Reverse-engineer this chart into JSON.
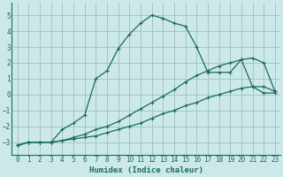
{
  "xlabel": "Humidex (Indice chaleur)",
  "background_color": "#cce8e8",
  "grid_color": "#a0c8c8",
  "line_color": "#1a6b5e",
  "xlim": [
    -0.5,
    23.5
  ],
  "ylim": [
    -3.8,
    5.8
  ],
  "yticks": [
    -3,
    -2,
    -1,
    0,
    1,
    2,
    3,
    4,
    5
  ],
  "xticks": [
    0,
    1,
    2,
    3,
    4,
    5,
    6,
    7,
    8,
    9,
    10,
    11,
    12,
    13,
    14,
    15,
    16,
    17,
    18,
    19,
    20,
    21,
    22,
    23
  ],
  "line1_x": [
    0,
    1,
    2,
    3,
    4,
    5,
    6,
    7,
    8,
    9,
    10,
    11,
    12,
    13,
    14,
    15,
    16,
    17,
    18,
    19,
    20,
    21,
    22,
    23
  ],
  "line1_y": [
    -3.2,
    -3.0,
    -3.0,
    -3.0,
    -2.9,
    -2.8,
    -2.7,
    -2.6,
    -2.4,
    -2.2,
    -2.0,
    -1.8,
    -1.5,
    -1.2,
    -1.0,
    -0.7,
    -0.5,
    -0.2,
    0.0,
    0.2,
    0.4,
    0.5,
    0.5,
    0.2
  ],
  "line2_x": [
    0,
    1,
    2,
    3,
    4,
    5,
    6,
    7,
    8,
    9,
    10,
    11,
    12,
    13,
    14,
    15,
    16,
    17,
    18,
    19,
    20,
    21,
    22,
    23
  ],
  "line2_y": [
    -3.2,
    -3.0,
    -3.0,
    -3.0,
    -2.9,
    -2.7,
    -2.5,
    -2.2,
    -2.0,
    -1.7,
    -1.3,
    -0.9,
    -0.5,
    -0.1,
    0.3,
    0.8,
    1.2,
    1.5,
    1.8,
    2.0,
    2.2,
    2.3,
    2.0,
    0.2
  ],
  "line3_x": [
    0,
    1,
    2,
    3,
    4,
    5,
    6,
    7,
    8,
    9,
    10,
    11,
    12,
    13,
    14,
    15,
    16,
    17,
    18,
    19,
    20,
    21,
    22,
    23
  ],
  "line3_y": [
    -3.2,
    -3.0,
    -3.0,
    -3.0,
    -2.2,
    -1.8,
    -1.3,
    1.0,
    1.5,
    2.9,
    3.8,
    4.5,
    5.0,
    4.8,
    4.5,
    4.3,
    3.0,
    1.4,
    1.4,
    1.4,
    2.2,
    0.5,
    0.1,
    0.1
  ]
}
